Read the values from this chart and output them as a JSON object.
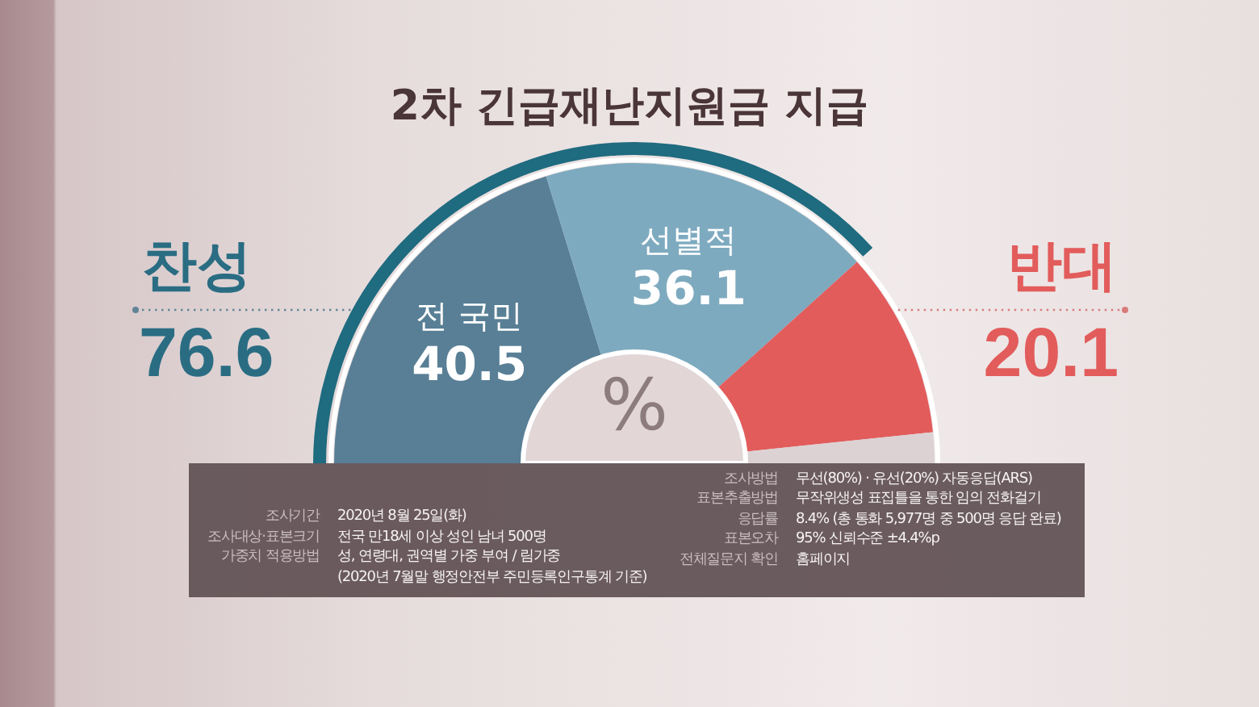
{
  "chart_data": {
    "type": "donut",
    "title": "2차 긴급재난지원금 지급",
    "categories": [
      "전 국민",
      "선별적",
      "반대",
      null
    ],
    "values": [
      40.5,
      36.1,
      20.1,
      3.3
    ],
    "colors": [
      "#587f95",
      "#7eaabf",
      "#e25c5c",
      "#dcd2d3"
    ],
    "value_labels": [
      "40.5",
      "36.1",
      "20.1",
      null
    ],
    "annotations": [
      "찬성",
      "76.6",
      "%",
      "조사기간",
      "2020년 8월 25일(화)",
      "조사대상·표본크기",
      "전국 만18세 이상 성인 남녀 500명",
      "가중치 적용방법",
      "성, 연령대, 권역별 가중 부여 / 림가중\n(2020년 7월말 행정안전부 주민등록인구통계 기준)",
      "조사방법",
      "무선(80%) · 유선(20%) 자동응답(ARS)",
      "표본추출방법",
      "무작위생성 표집틀을 통한 임의 전화걸기",
      "응답률",
      "8.4% (총 통화 5,977명 중 500명 응답 완료)",
      "표본오차",
      "95% 신뢰수준 ±4.4%p",
      "전체질문지 확인",
      "홈페이지"
    ]
  }
}
